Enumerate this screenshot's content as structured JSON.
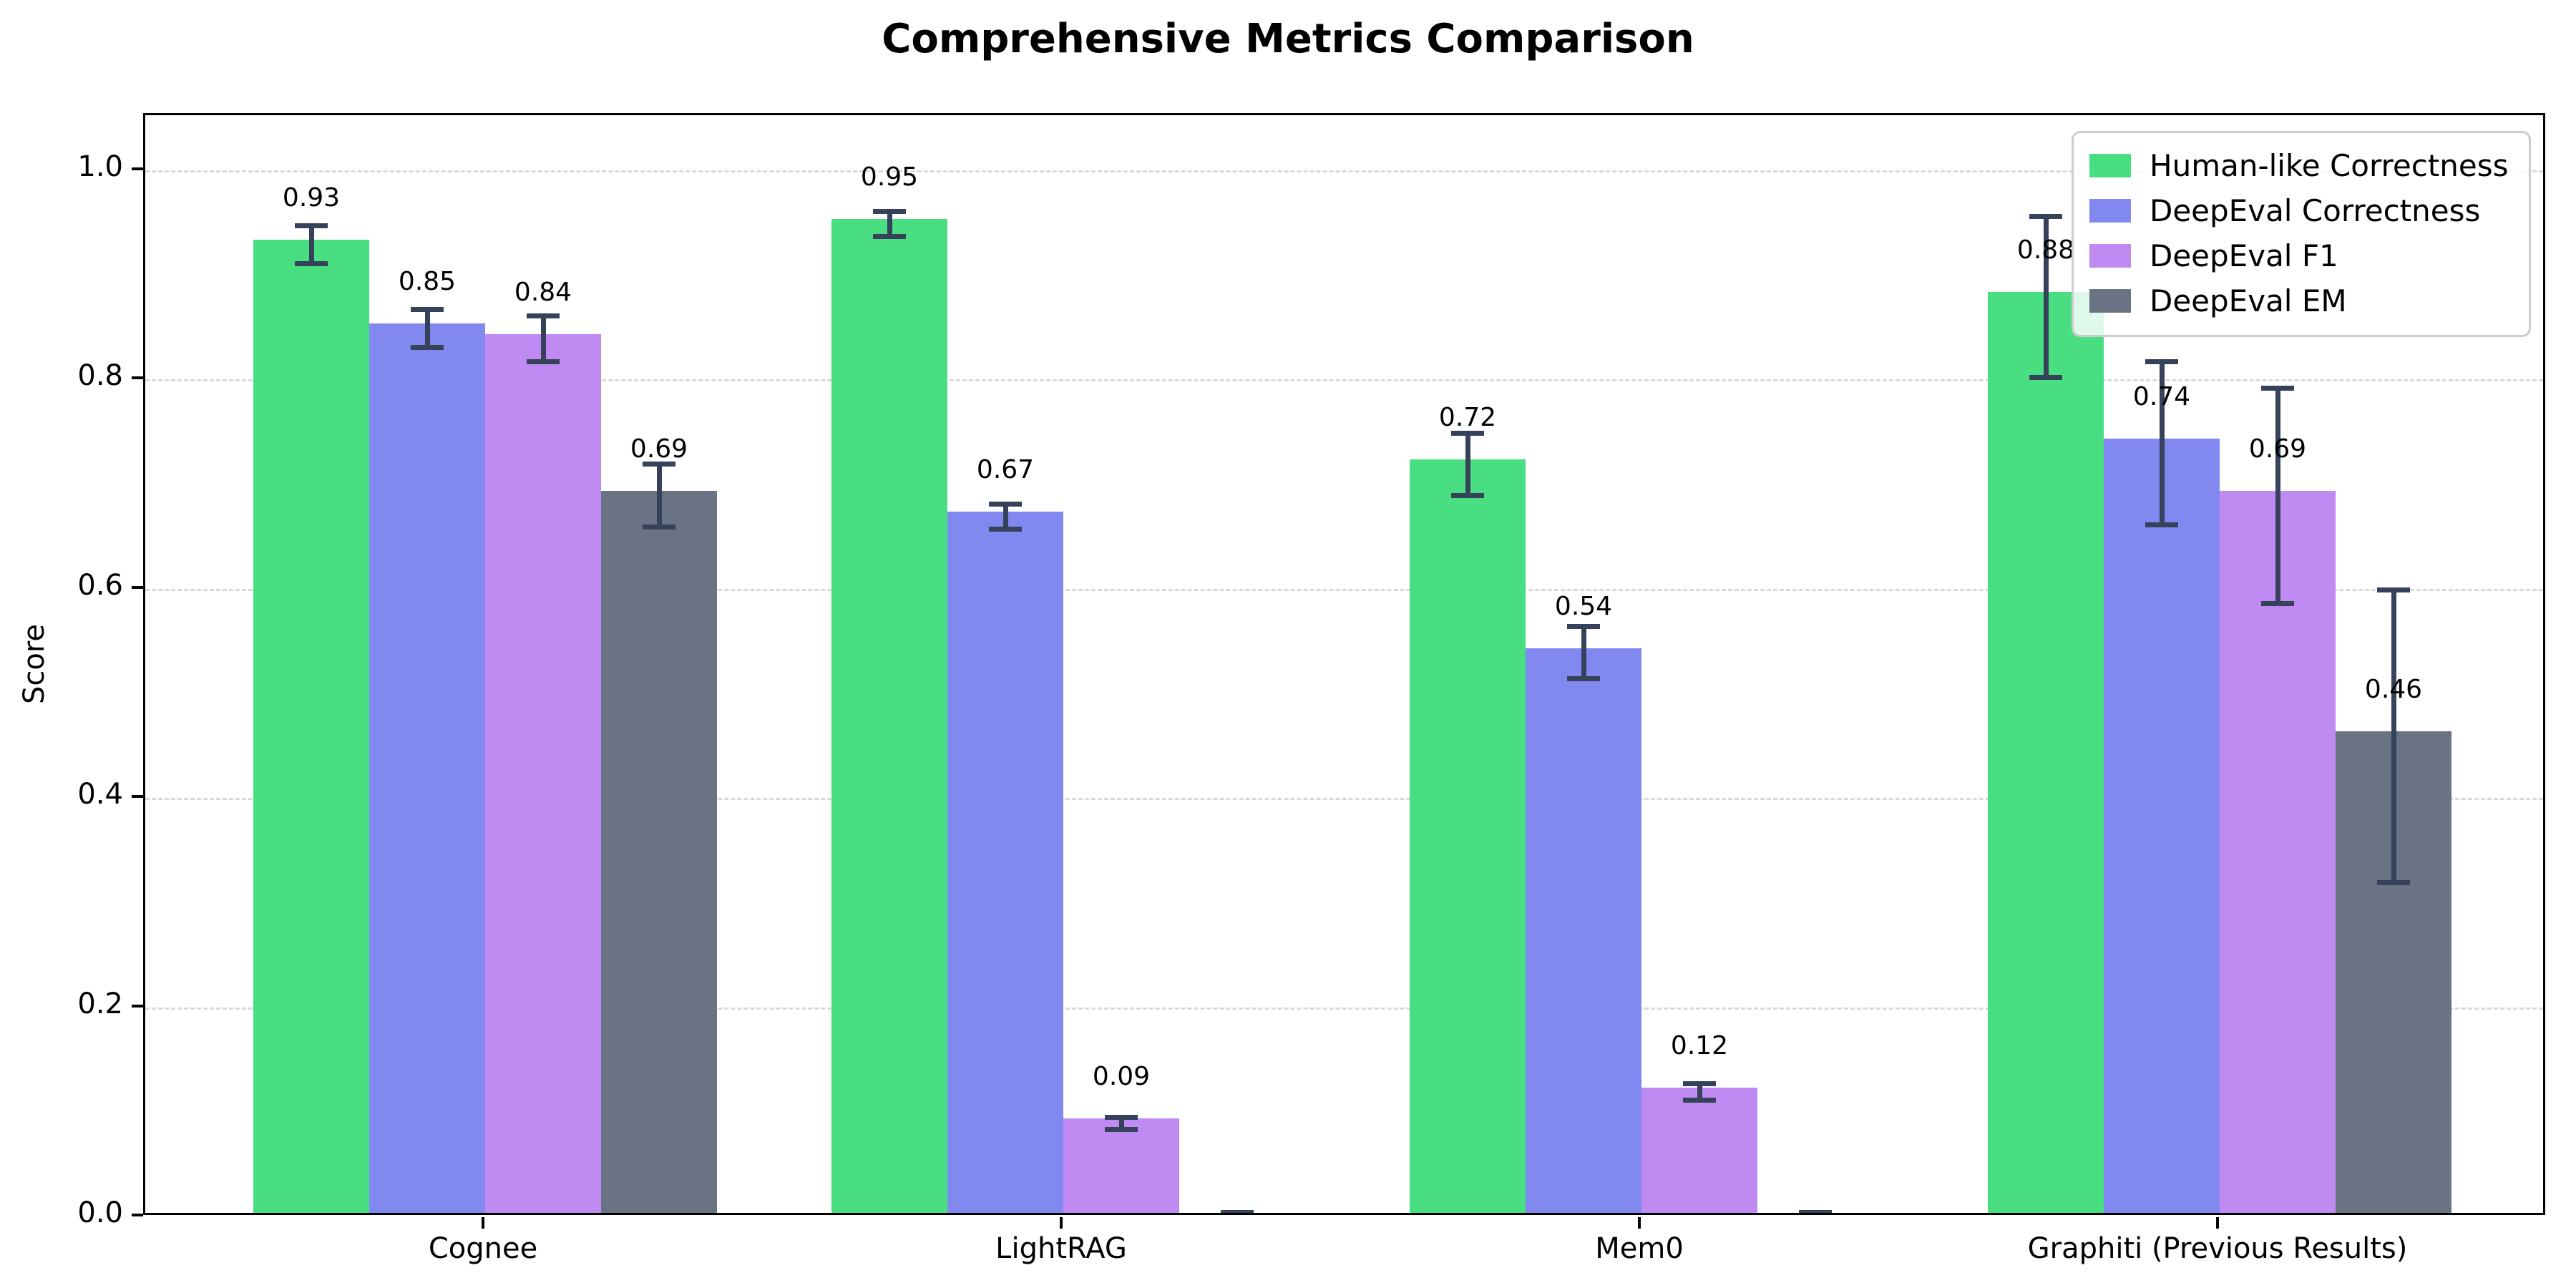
{
  "title": "Comprehensive Metrics Comparison",
  "chart_data": {
    "type": "bar",
    "title": "Comprehensive Metrics Comparison",
    "xlabel": "",
    "ylabel": "Score",
    "categories": [
      "Cognee",
      "LightRAG",
      "Mem0",
      "Graphiti (Previous Results)"
    ],
    "series": [
      {
        "name": "Human-like Correctness",
        "color": "#4ade83",
        "values": [
          0.93,
          0.95,
          0.72,
          0.88
        ],
        "errors": [
          0.018,
          0.012,
          0.03,
          0.077
        ],
        "labels": [
          "0.93",
          "0.95",
          "0.72",
          "0.88"
        ]
      },
      {
        "name": "DeepEval Correctness",
        "color": "#8189f0",
        "values": [
          0.85,
          0.67,
          0.54,
          0.74
        ],
        "errors": [
          0.018,
          0.012,
          0.025,
          0.078
        ],
        "labels": [
          "0.85",
          "0.67",
          "0.54",
          "0.74"
        ]
      },
      {
        "name": "DeepEval F1",
        "color": "#c08af3",
        "values": [
          0.84,
          0.09,
          0.12,
          0.69
        ],
        "errors": [
          0.022,
          0.006,
          0.008,
          0.103
        ],
        "labels": [
          "0.84",
          "0.09",
          "0.12",
          "0.69"
        ]
      },
      {
        "name": "DeepEval EM",
        "color": "#697384",
        "values": [
          0.69,
          0.0,
          0.0,
          0.46
        ],
        "errors": [
          0.03,
          0.005,
          0.005,
          0.14
        ],
        "labels": [
          "0.69",
          "",
          "",
          "0.46"
        ]
      }
    ],
    "yticks": [
      {
        "value": 0.0,
        "label": "0.0"
      },
      {
        "value": 0.2,
        "label": "0.2"
      },
      {
        "value": 0.4,
        "label": "0.4"
      },
      {
        "value": 0.6,
        "label": "0.6"
      },
      {
        "value": 0.8,
        "label": "0.8"
      },
      {
        "value": 1.0,
        "label": "1.0"
      }
    ],
    "ylim": [
      0,
      1.053
    ],
    "grid": "horizontal-dashed",
    "legend_position": "upper-right",
    "error_bar_color": "#36415a"
  }
}
